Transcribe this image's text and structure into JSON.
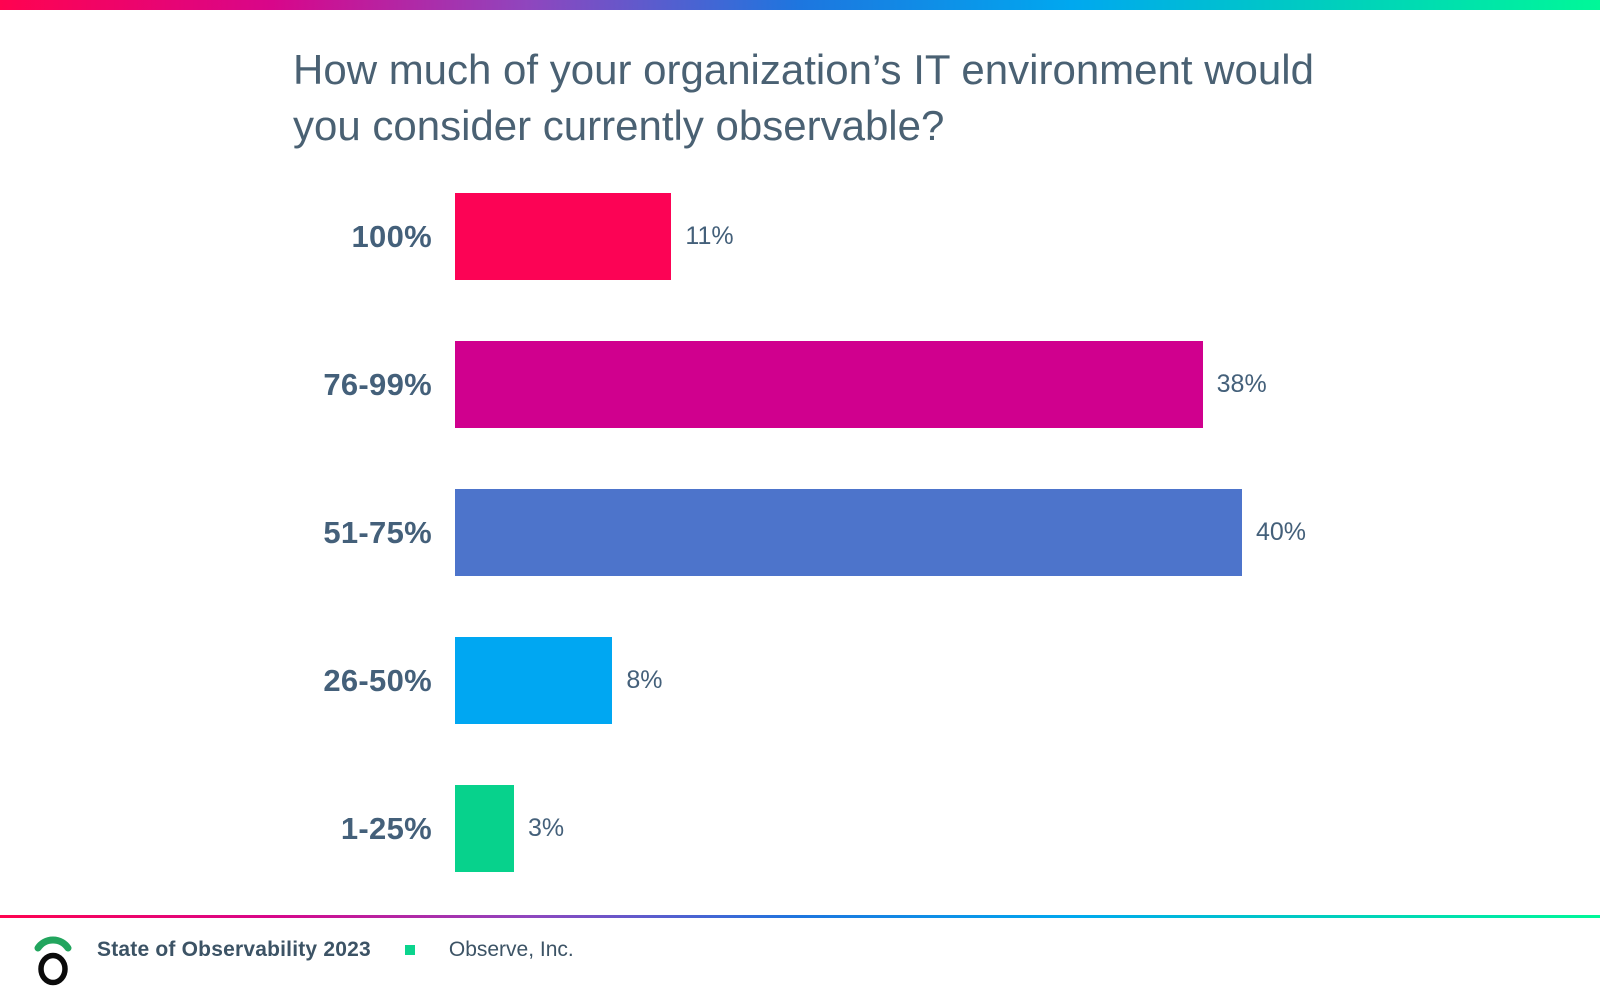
{
  "page": {
    "background": "#FFFFFF",
    "text_color": "#4A6173",
    "gradient_stops": [
      "#FF0350",
      "#D8068A",
      "#8F46BE",
      "#1D76DF",
      "#00A8EF",
      "#00CEBE",
      "#00F898"
    ]
  },
  "chart_data": {
    "type": "bar",
    "orientation": "horizontal",
    "title": "How much of your organization’s IT environment would you consider currently observable?",
    "categories": [
      "100%",
      "76-99%",
      "51-75%",
      "26-50%",
      "1-25%"
    ],
    "values": [
      11,
      38,
      40,
      8,
      3
    ],
    "value_labels": [
      "11%",
      "38%",
      "40%",
      "8%",
      "3%"
    ],
    "bar_colors": [
      "#FC0355",
      "#D0008E",
      "#4D74CB",
      "#00A7F2",
      "#07D28C"
    ],
    "xlim": [
      0,
      40
    ],
    "grid": false,
    "legend": false,
    "xlabel": "",
    "ylabel": ""
  },
  "footer": {
    "report_title": "State of Observability 2023",
    "company": "Observe, Inc.",
    "separator_color": "#0BD48D",
    "logo_arc_color": "#22A55E",
    "logo_circle_color": "#0B0B0B"
  }
}
